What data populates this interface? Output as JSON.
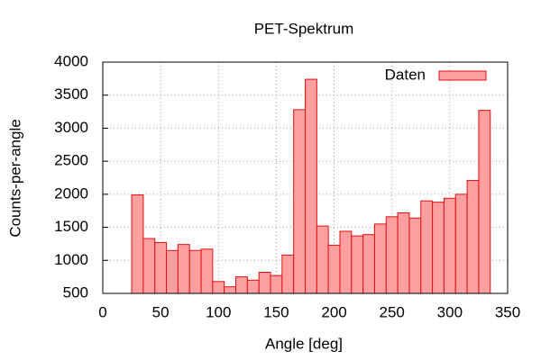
{
  "chart_data": {
    "type": "histogram",
    "title": "PET-Spektrum",
    "x_label": "Angle [deg]",
    "y_label": "Counts-per-angle",
    "bins": [
      25,
      35,
      45,
      55,
      65,
      75,
      85,
      95,
      105,
      115,
      125,
      135,
      145,
      155,
      165,
      175,
      185,
      195,
      205,
      215,
      225,
      235,
      245,
      255,
      265,
      275,
      285,
      295,
      305,
      315,
      325,
      335
    ],
    "series": [
      {
        "name": "Daten",
        "color": "#ff9f9f",
        "edge_color": "#dd1111",
        "values": [
          1990,
          1330,
          1270,
          1150,
          1240,
          1150,
          1170,
          680,
          600,
          750,
          700,
          820,
          770,
          1080,
          3280,
          3740,
          1520,
          1230,
          1440,
          1370,
          1390,
          1550,
          1660,
          1720,
          1640,
          1900,
          1880,
          1940,
          2000,
          2210,
          3270
        ]
      }
    ],
    "xlim": [
      0,
      350
    ],
    "ylim": [
      500,
      4000
    ],
    "xticks": [
      0,
      50,
      100,
      150,
      200,
      250,
      300,
      350
    ],
    "yticks": [
      500,
      1000,
      1500,
      2000,
      2500,
      3000,
      3500,
      4000
    ],
    "grid": true,
    "legend": "top-right"
  }
}
